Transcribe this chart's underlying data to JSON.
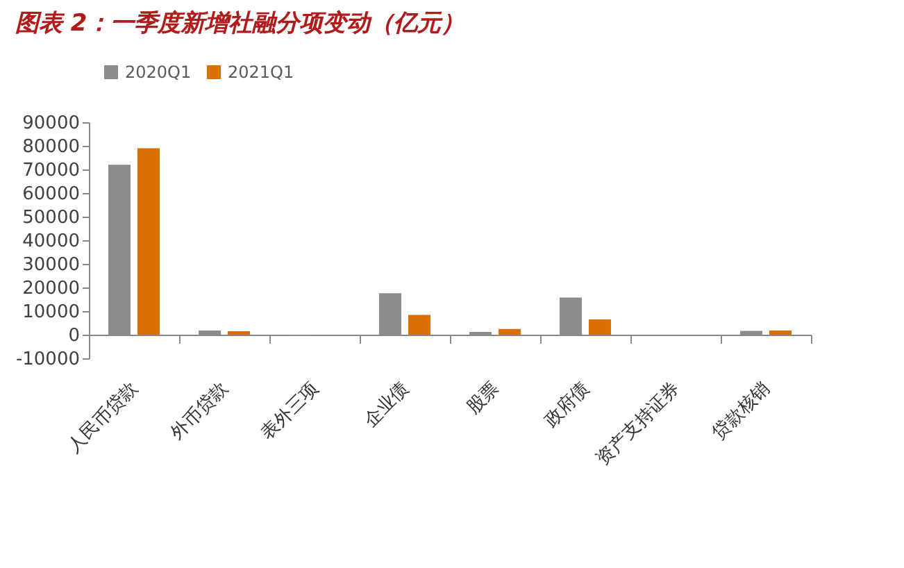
{
  "chart_data": {
    "type": "bar",
    "title": "图表 2：一季度新增社融分项变动（亿元）",
    "categories": [
      "人民币贷款",
      "外币贷款",
      "表外三项",
      "企业债",
      "股票",
      "政府债",
      "资产支持证券",
      "贷款核销"
    ],
    "series": [
      {
        "name": "2020Q1",
        "color": "#8c8c8c",
        "values": [
          72000,
          1800,
          -600,
          17600,
          1200,
          15700,
          0,
          1600
        ]
      },
      {
        "name": "2021Q1",
        "color": "#d97000",
        "values": [
          79000,
          1500,
          0,
          8400,
          2400,
          6500,
          0,
          1800
        ]
      }
    ],
    "ylim": [
      -10000,
      90000
    ],
    "yticks": [
      -10000,
      0,
      10000,
      20000,
      30000,
      40000,
      50000,
      60000,
      70000,
      80000,
      90000
    ],
    "grid": false,
    "legend": "top"
  }
}
